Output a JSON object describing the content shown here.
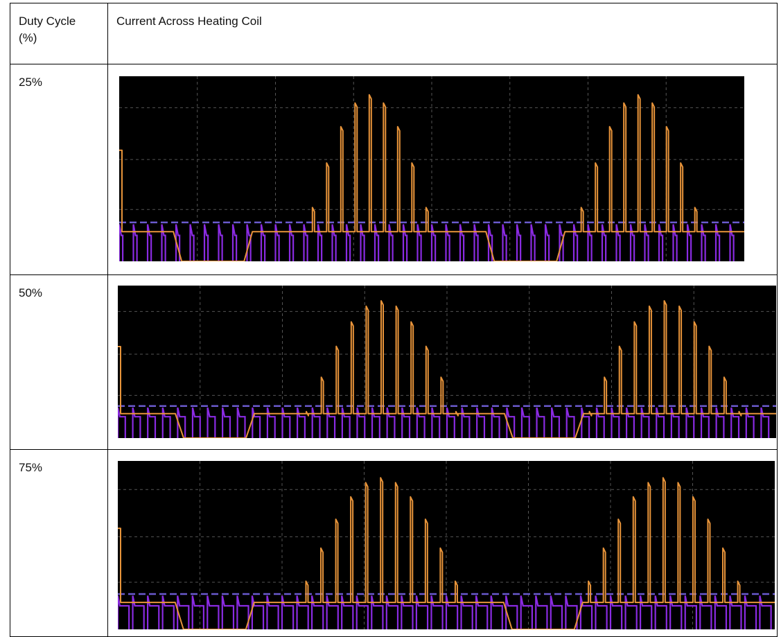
{
  "table": {
    "header": [
      "Duty Cycle (%)",
      "Current Across Heating Coil"
    ],
    "rows": [
      [
        "25%"
      ],
      [
        "50%"
      ],
      [
        "75%"
      ]
    ]
  }
}
